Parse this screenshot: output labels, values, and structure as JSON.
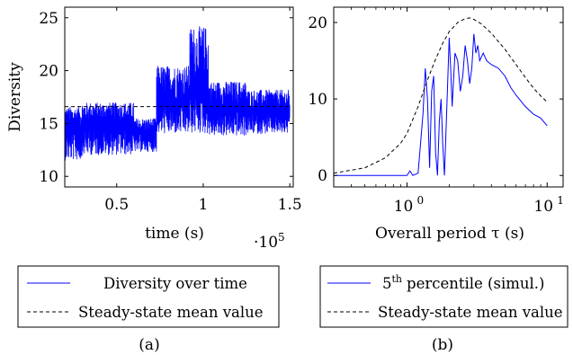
{
  "chart_data": [
    {
      "type": "line",
      "xlabel": "time (s)",
      "xlabel_multiplier": "·10",
      "xlabel_multiplier_exp": "5",
      "ylabel": "Diversity",
      "xlim": [
        0.2,
        1.52
      ],
      "ylim": [
        9,
        26
      ],
      "xticks": [
        "0.5",
        "1",
        "1.5"
      ],
      "xtick_values": [
        0.5,
        1.0,
        1.5
      ],
      "yticks": [
        "10",
        "15",
        "20",
        "25"
      ],
      "ytick_values": [
        10,
        15,
        20,
        25
      ],
      "series": [
        {
          "name": "Diversity over time",
          "style": "solid",
          "color": "#0000ff",
          "noisy": true,
          "x_range": [
            0.2,
            1.5
          ],
          "segments": [
            {
              "x": [
                0.2,
                0.3
              ],
              "low": 11.5,
              "high": 16.6,
              "mean": 14.5
            },
            {
              "x": [
                0.3,
                0.6
              ],
              "low": 12.0,
              "high": 17.0,
              "mean": 15.0
            },
            {
              "x": [
                0.6,
                0.73
              ],
              "low": 12.3,
              "high": 15.5,
              "mean": 14.0
            },
            {
              "x": [
                0.73,
                0.92
              ],
              "low": 14.0,
              "high": 20.5,
              "mean": 17.0
            },
            {
              "x": [
                0.92,
                1.03
              ],
              "low": 14.0,
              "high": 24.2,
              "mean": 18.5
            },
            {
              "x": [
                1.03,
                1.25
              ],
              "low": 13.8,
              "high": 19.0,
              "mean": 16.5
            },
            {
              "x": [
                1.25,
                1.5
              ],
              "low": 14.0,
              "high": 18.2,
              "mean": 16.2
            }
          ]
        },
        {
          "name": "Steady-state mean value",
          "style": "dashed",
          "color": "#000000",
          "x": [
            0.2,
            1.5
          ],
          "values": [
            16.6,
            16.6
          ]
        }
      ],
      "legend": [
        {
          "label": "Diversity over time",
          "style": "solid",
          "color": "#0000ff"
        },
        {
          "label": "Steady-state mean value",
          "style": "dashed",
          "color": "#000000"
        }
      ],
      "caption": "(a)"
    },
    {
      "type": "line",
      "xscale": "log",
      "xlabel": "Overall period τ (s)",
      "xlabel_math": "τ",
      "ylabel": "",
      "xlim": [
        0.3,
        13
      ],
      "ylim": [
        -1.5,
        22
      ],
      "xticks": [
        "10",
        "10"
      ],
      "xtick_exps": [
        "0",
        "1"
      ],
      "xtick_values": [
        1,
        10
      ],
      "yticks": [
        "0",
        "10",
        "20"
      ],
      "ytick_values": [
        0,
        10,
        20
      ],
      "series": [
        {
          "name": "5th percentile (simul.)",
          "style": "solid",
          "color": "#0000ff",
          "x": [
            0.3,
            0.5,
            0.8,
            1.0,
            1.05,
            1.1,
            1.2,
            1.3,
            1.35,
            1.4,
            1.45,
            1.5,
            1.55,
            1.6,
            1.65,
            1.7,
            1.75,
            1.8,
            1.85,
            1.9,
            1.95,
            2.0,
            2.05,
            2.1,
            2.2,
            2.3,
            2.4,
            2.5,
            2.6,
            2.7,
            2.8,
            2.9,
            3.0,
            3.1,
            3.2,
            3.3,
            3.5,
            3.7,
            4.0,
            4.5,
            5.0,
            5.5,
            6.0,
            7.0,
            8.0,
            9.0,
            10.0
          ],
          "values": [
            0,
            0,
            0,
            0,
            0.6,
            0,
            0.3,
            8,
            14,
            10,
            1,
            11,
            13,
            3,
            0,
            7,
            10,
            4,
            0,
            6,
            12,
            18,
            14,
            9,
            16,
            15,
            11,
            13,
            17,
            15,
            12,
            14,
            18.5,
            16,
            17,
            15,
            16,
            15,
            14.5,
            14,
            13,
            11.5,
            10.5,
            9,
            8,
            7.5,
            6.5
          ]
        },
        {
          "name": "Steady-state mean value",
          "style": "dashed",
          "color": "#000000",
          "x": [
            0.3,
            0.5,
            0.7,
            0.9,
            1.0,
            1.2,
            1.4,
            1.6,
            1.8,
            2.0,
            2.3,
            2.6,
            2.8,
            3.0,
            3.4,
            4.0,
            5.0,
            6.0,
            7.0,
            8.0,
            9.0,
            10.0
          ],
          "values": [
            0.3,
            1.0,
            2.3,
            4.2,
            5.5,
            9.0,
            12.5,
            15.2,
            17.3,
            18.8,
            20.0,
            20.5,
            20.6,
            20.4,
            19.8,
            18.6,
            16.5,
            14.5,
            12.8,
            11.4,
            10.4,
            9.6
          ]
        }
      ],
      "legend": [
        {
          "label": "percentile (simul.)",
          "prefix": "5",
          "prefix_sup": "th",
          "style": "solid",
          "color": "#0000ff"
        },
        {
          "label": "Steady-state mean value",
          "style": "dashed",
          "color": "#000000"
        }
      ],
      "caption": "(b)"
    }
  ]
}
